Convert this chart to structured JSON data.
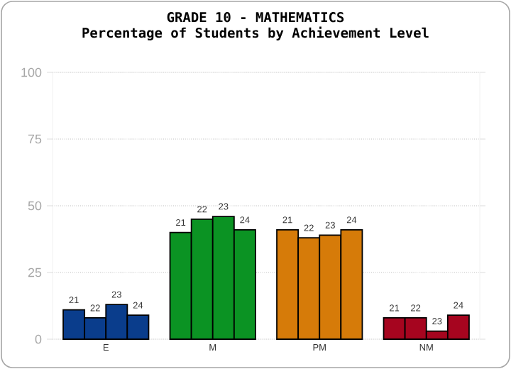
{
  "chart_data": {
    "type": "bar",
    "title": "GRADE 10 - MATHEMATICS",
    "subtitle": "Percentage of Students by Achievement Level",
    "categories": [
      "E",
      "M",
      "PM",
      "NM"
    ],
    "series": [
      {
        "name": "21",
        "colors": [
          "#0a3d8c",
          "#0b9323",
          "#d67b09",
          "#a6051f"
        ],
        "values": [
          11,
          40,
          41,
          8
        ]
      },
      {
        "name": "22",
        "colors": [
          "#0a3d8c",
          "#0b9323",
          "#d67b09",
          "#a6051f"
        ],
        "values": [
          8,
          45,
          38,
          8
        ]
      },
      {
        "name": "23",
        "colors": [
          "#0a3d8c",
          "#0b9323",
          "#d67b09",
          "#a6051f"
        ],
        "values": [
          13,
          46,
          39,
          3
        ]
      },
      {
        "name": "24",
        "colors": [
          "#0a3d8c",
          "#0b9323",
          "#d67b09",
          "#a6051f"
        ],
        "values": [
          9,
          41,
          41,
          9
        ]
      }
    ],
    "ylim": [
      0,
      100
    ],
    "yticks": [
      0,
      25,
      50,
      75,
      100
    ],
    "grid": "y"
  }
}
